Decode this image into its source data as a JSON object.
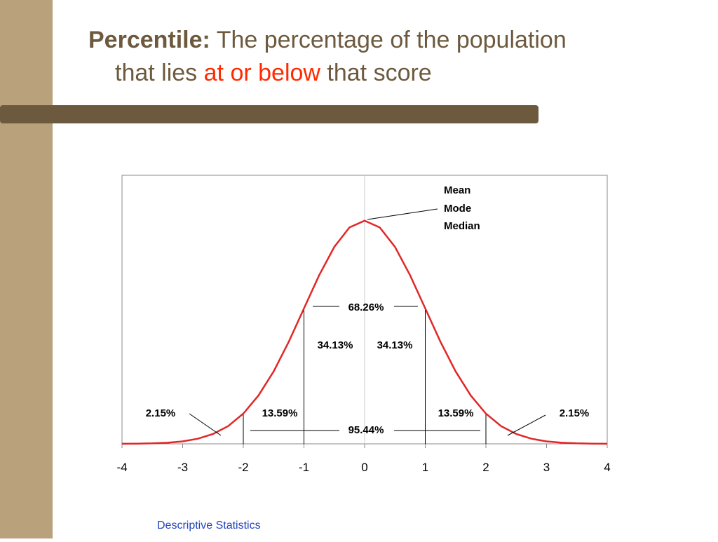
{
  "slide": {
    "title_bold": "Percentile:",
    "title_line1": "The percentage of the population",
    "title_line2_a": "that lies",
    "title_highlight": "at or below",
    "title_line2_b": "that score",
    "footer": "Descriptive Statistics"
  },
  "chart_data": {
    "type": "line",
    "color": "#e02828",
    "x": [
      -4,
      -3.75,
      -3.5,
      -3.25,
      -3,
      -2.75,
      -2.5,
      -2.25,
      -2,
      -1.75,
      -1.5,
      -1.25,
      -1,
      -0.75,
      -0.5,
      -0.25,
      0,
      0.25,
      0.5,
      0.75,
      1,
      1.25,
      1.5,
      1.75,
      2,
      2.25,
      2.5,
      2.75,
      3,
      3.25,
      3.5,
      3.75,
      4
    ],
    "values": [
      0.0001,
      0.0004,
      0.0009,
      0.002,
      0.0044,
      0.0091,
      0.0175,
      0.0317,
      0.054,
      0.0863,
      0.1295,
      0.1826,
      0.242,
      0.3011,
      0.3521,
      0.3867,
      0.3989,
      0.3867,
      0.3521,
      0.3011,
      0.242,
      0.1826,
      0.1295,
      0.0863,
      0.054,
      0.0317,
      0.0175,
      0.0091,
      0.0044,
      0.002,
      0.0009,
      0.0004,
      0.0001
    ],
    "xlim": [
      -4,
      4
    ],
    "xticks": [
      -4,
      -3,
      -2,
      -1,
      0,
      1,
      2,
      3,
      4
    ],
    "ylim": [
      0,
      0.48
    ],
    "vlines": [
      -2,
      -1,
      1,
      2
    ],
    "annotations": [
      "Mean",
      "Mode",
      "Median",
      "68.26%",
      "34.13%",
      "34.13%",
      "13.59%",
      "13.59%",
      "2.15%",
      "2.15%",
      "95.44%"
    ]
  }
}
